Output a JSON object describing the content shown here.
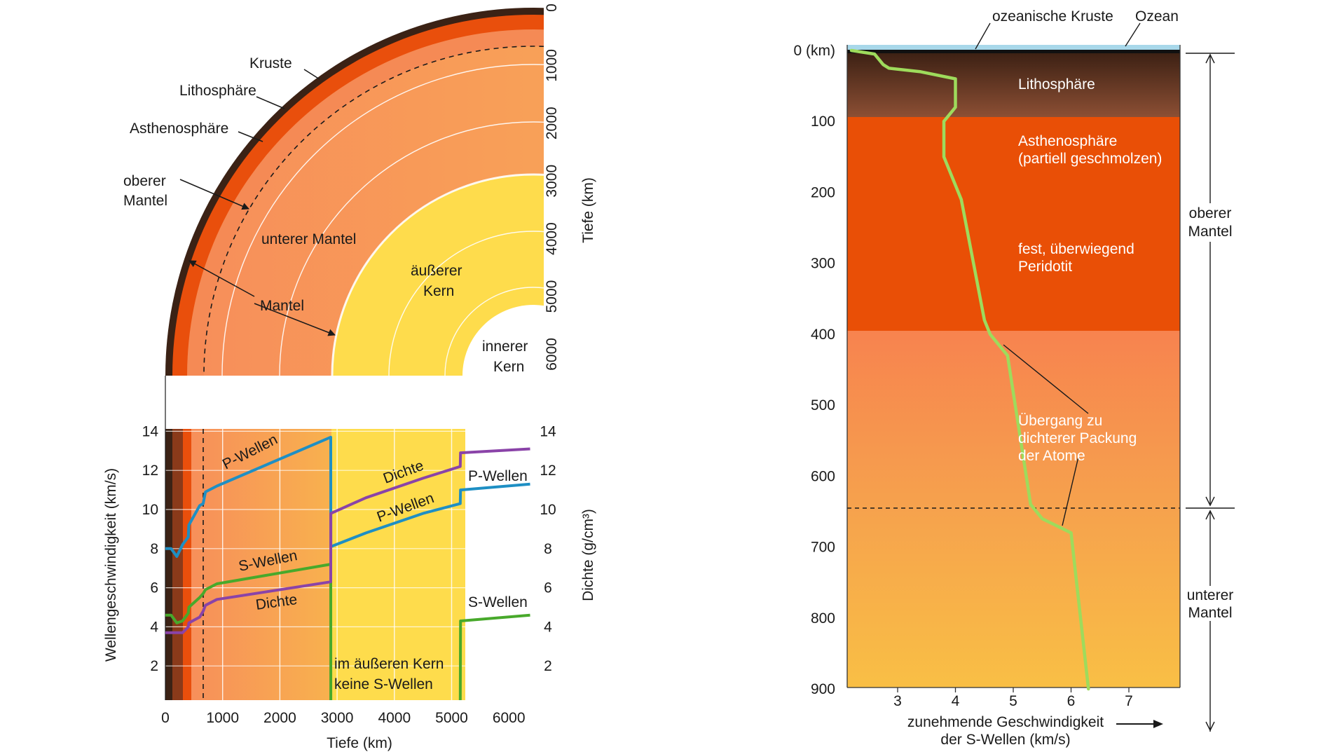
{
  "left_top": {
    "labels": {
      "kruste": "Kruste",
      "lithosphaere": "Lithosphäre",
      "asthenosphaere": "Asthenosphäre",
      "oberer_mantel_1": "oberer",
      "oberer_mantel_2": "Mantel",
      "unterer_mantel": "unterer Mantel",
      "mantel": "Mantel",
      "aeusserer_kern_1": "äußerer",
      "aeusserer_kern_2": "Kern",
      "innerer_kern_1": "innerer",
      "innerer_kern_2": "Kern"
    },
    "depth_ticks": [
      "0",
      "1000",
      "2000",
      "3000",
      "4000",
      "5000",
      "6000"
    ],
    "depth_axis_label": "Tiefe (km)"
  },
  "left_chart": {
    "chart_data": {
      "type": "line",
      "xlabel": "Tiefe (km)",
      "ylabel_left": "Wellengeschwindigkeit (km/s)",
      "ylabel_right": "Dichte (g/cm³)",
      "x_ticks": [
        "0",
        "1000",
        "2000",
        "3000",
        "4000",
        "5000",
        "6000"
      ],
      "y_ticks": [
        "2",
        "4",
        "6",
        "8",
        "10",
        "12",
        "14"
      ],
      "xlim": [
        0,
        6371
      ],
      "ylim": [
        0,
        14
      ],
      "series": [
        {
          "name": "P-Wellen",
          "color": "#1e8fc4",
          "x": [
            0,
            100,
            200,
            300,
            400,
            410,
            600,
            660,
            700,
            900,
            2889,
            2890,
            3500,
            4500,
            5150,
            5155,
            6371
          ],
          "y": [
            8.0,
            8.0,
            7.6,
            8.2,
            8.6,
            9.2,
            10.2,
            10.3,
            10.9,
            11.2,
            13.7,
            8.1,
            8.8,
            9.8,
            10.3,
            11.0,
            11.3
          ]
        },
        {
          "name": "S-Wellen",
          "color": "#48a92b",
          "x": [
            0,
            100,
            200,
            300,
            400,
            410,
            600,
            660,
            700,
            900,
            2889,
            2890,
            5150,
            5155,
            6371
          ],
          "y": [
            4.6,
            4.6,
            4.2,
            4.3,
            4.7,
            5.0,
            5.5,
            5.7,
            5.9,
            6.2,
            7.2,
            0.0,
            0.0,
            4.3,
            4.6
          ]
        },
        {
          "name": "Dichte",
          "color": "#8a43a8",
          "x": [
            0,
            300,
            400,
            410,
            600,
            660,
            700,
            900,
            2889,
            2890,
            3500,
            4500,
            5150,
            5155,
            6371
          ],
          "y": [
            3.7,
            3.7,
            4.0,
            4.2,
            4.5,
            4.8,
            5.1,
            5.4,
            6.3,
            9.8,
            10.6,
            11.6,
            12.2,
            12.9,
            13.1
          ]
        }
      ],
      "annotations": {
        "p_mantle": "P-Wellen",
        "s_mantle": "S-Wellen",
        "d_mantle": "Dichte",
        "d_core": "Dichte",
        "p_core": "P-Wellen",
        "p_inner": "P-Wellen",
        "s_inner": "S-Wellen",
        "no_s_1": "im äußeren Kern",
        "no_s_2": "keine S-Wellen"
      }
    }
  },
  "right_chart": {
    "top_labels": {
      "kruste": "ozeanische Kruste",
      "ozean": "Ozean"
    },
    "depth_ticks": [
      "0 (km)",
      "100",
      "200",
      "300",
      "400",
      "500",
      "600",
      "700",
      "800",
      "900"
    ],
    "x_ticks": [
      "3",
      "4",
      "5",
      "6",
      "7"
    ],
    "xlabel_1": "zunehmende Geschwindigkeit",
    "xlabel_2": "der S-Wellen (km/s)",
    "layers": {
      "lithosphaere": "Lithosphäre",
      "asth_1": "Asthenosphäre",
      "asth_2": "(partiell geschmolzen)",
      "fest_1": "fest, überwiegend",
      "fest_2": "Peridotit",
      "ueber_1": "Übergang zu",
      "ueber_2": "dichterer Packung",
      "ueber_3": "der Atome"
    },
    "mantle_labels": {
      "oberer_1": "oberer",
      "oberer_2": "Mantel",
      "unterer_1": "unterer",
      "unterer_2": "Mantel"
    },
    "chart_data": {
      "type": "line",
      "series": [
        {
          "name": "S-Wellen",
          "color": "#9edb5c",
          "depth_km": [
            0,
            5,
            20,
            25,
            30,
            40,
            80,
            100,
            150,
            190,
            210,
            380,
            400,
            430,
            640,
            660,
            680,
            900
          ],
          "velocity_km_s": [
            2.2,
            2.6,
            2.75,
            2.85,
            3.4,
            4.0,
            4.0,
            3.8,
            3.8,
            4.0,
            4.1,
            4.5,
            4.6,
            4.9,
            5.3,
            5.5,
            6.0,
            6.3
          ]
        }
      ],
      "xlim": [
        2.2,
        8.0
      ],
      "ylim": [
        0,
        900
      ]
    }
  }
}
